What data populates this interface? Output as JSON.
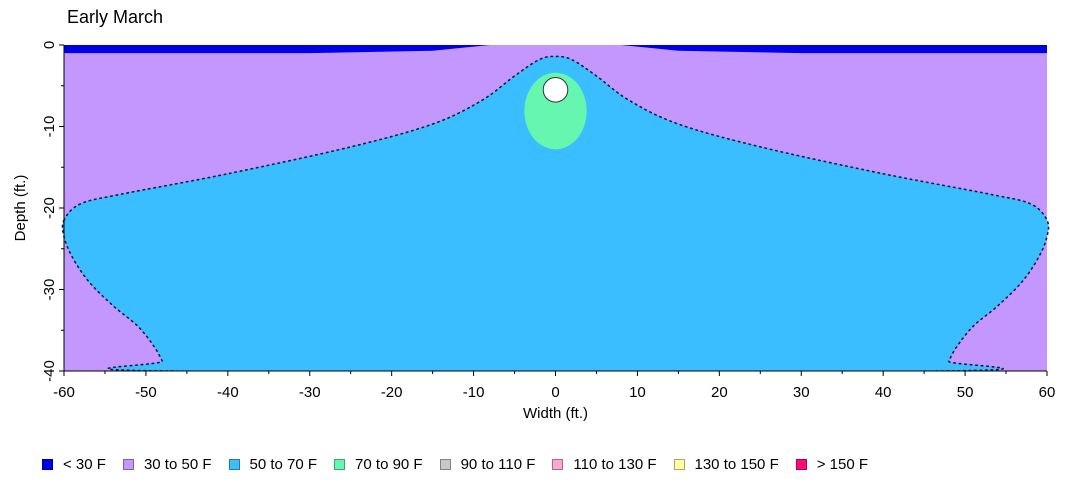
{
  "chart_data": {
    "type": "heatmap",
    "title": "Early March",
    "xlabel": "Width (ft.)",
    "ylabel": "Depth (ft.)",
    "xlim": [
      -60,
      60
    ],
    "ylim": [
      -40,
      0
    ],
    "x_ticks": [
      "-60",
      "-50",
      "-40",
      "-30",
      "-20",
      "-10",
      "0",
      "10",
      "20",
      "30",
      "40",
      "50",
      "60"
    ],
    "y_ticks": [
      "0",
      "-10",
      "-20",
      "-30",
      "-40"
    ],
    "grid": false,
    "legend_position": "bottom",
    "legend": [
      {
        "label": "< 30 F",
        "color": "#0000E6"
      },
      {
        "label": "30 to 50 F",
        "color": "#C497FF"
      },
      {
        "label": "50 to 70 F",
        "color": "#3BBEFF"
      },
      {
        "label": "70 to 90 F",
        "color": "#66F6B0"
      },
      {
        "label": "90 to 110 F",
        "color": "#C8C8C8"
      },
      {
        "label": "110 to 130 F",
        "color": "#FFA6D0"
      },
      {
        "label": "130 to 150 F",
        "color": "#FFFFA6"
      },
      {
        "label": "> 150 F",
        "color": "#FF0A78"
      }
    ],
    "regions": {
      "surface_band": {
        "range": "< 30 F",
        "boundary": [
          [
            -60,
            0
          ],
          [
            -60,
            -1
          ],
          [
            -30,
            -1
          ],
          [
            -15,
            -0.7
          ],
          [
            -8,
            0
          ],
          [
            8,
            0
          ],
          [
            15,
            -0.7
          ],
          [
            30,
            -1
          ],
          [
            60,
            -1
          ],
          [
            60,
            0
          ]
        ]
      },
      "warm_zone": {
        "range": "50 to 70 F",
        "boundary": [
          [
            -60,
            -21.5
          ],
          [
            -58,
            -19.5
          ],
          [
            -53,
            -18.3
          ],
          [
            -40,
            -15.8
          ],
          [
            -25,
            -12.5
          ],
          [
            -15,
            -9.7
          ],
          [
            -9,
            -6.8
          ],
          [
            -5,
            -3.8
          ],
          [
            -2,
            -1.8
          ],
          [
            0,
            -1.4
          ],
          [
            2,
            -1.8
          ],
          [
            5,
            -3.8
          ],
          [
            9,
            -6.8
          ],
          [
            15,
            -9.7
          ],
          [
            25,
            -12.5
          ],
          [
            40,
            -15.8
          ],
          [
            53,
            -18.3
          ],
          [
            58,
            -19.5
          ],
          [
            60,
            -21.5
          ],
          [
            60,
            -23.5
          ],
          [
            59,
            -26
          ],
          [
            57,
            -29
          ],
          [
            54,
            -32
          ],
          [
            51,
            -34.5
          ],
          [
            49,
            -37
          ],
          [
            48,
            -38.8
          ],
          [
            47.5,
            -40
          ],
          [
            -47.5,
            -40
          ],
          [
            -48,
            -38.8
          ],
          [
            -49,
            -37
          ],
          [
            -51,
            -34.5
          ],
          [
            -54,
            -32
          ],
          [
            -57,
            -29
          ],
          [
            -59,
            -26
          ],
          [
            -60,
            -23.5
          ]
        ]
      },
      "pipe_zone": {
        "range": "70 to 90 F",
        "center": [
          0,
          -8.1
        ],
        "radius": [
          3.8,
          4.7
        ]
      },
      "pipe": {
        "center": [
          0,
          -5.5
        ],
        "radius_ft": 1.5
      }
    }
  }
}
